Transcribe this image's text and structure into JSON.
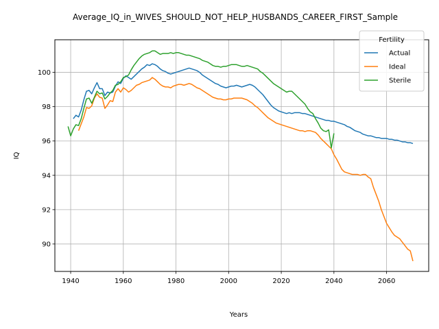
{
  "chart_data": {
    "type": "line",
    "title": "Average_IQ_in_WIVES_SHOULD_NOT_HELP_HUSBANDS_CAREER_FIRST_Sample",
    "xlabel": "Years",
    "ylabel": "IQ",
    "xlim": [
      1934,
      2076
    ],
    "ylim": [
      88.4,
      101.9
    ],
    "xticks": [
      1940,
      1960,
      1980,
      2000,
      2020,
      2040,
      2060
    ],
    "yticks": [
      90,
      92,
      94,
      96,
      98,
      100
    ],
    "grid": true,
    "legend": {
      "title": "Fertility",
      "placement": "top-right"
    },
    "series": [
      {
        "name": "Actual",
        "color": "#1f77b4",
        "x": [
          1940,
          1941,
          1942,
          1943,
          1944,
          1945,
          1946,
          1947,
          1948,
          1949,
          1950,
          1951,
          1952,
          1953,
          1954,
          1955,
          1956,
          1957,
          1958,
          1959,
          1960,
          1961,
          1962,
          1963,
          1964,
          1965,
          1966,
          1967,
          1968,
          1969,
          1970,
          1971,
          1972,
          1973,
          1974,
          1975,
          1976,
          1977,
          1978,
          1979,
          1980,
          1981,
          1982,
          1983,
          1984,
          1985,
          1986,
          1987,
          1988,
          1989,
          1990,
          1991,
          1992,
          1993,
          1994,
          1995,
          1996,
          1997,
          1998,
          1999,
          2000,
          2001,
          2002,
          2003,
          2004,
          2005,
          2006,
          2007,
          2008,
          2009,
          2010,
          2011,
          2012,
          2013,
          2014,
          2015,
          2016,
          2017,
          2018,
          2019,
          2020,
          2021,
          2022,
          2023,
          2024,
          2025,
          2026,
          2027,
          2028,
          2029,
          2030,
          2031,
          2032,
          2033,
          2034,
          2035,
          2036,
          2037,
          2038,
          2039,
          2040,
          2041,
          2042,
          2043,
          2044,
          2045,
          2046,
          2047,
          2048,
          2049,
          2050,
          2051,
          2052,
          2053,
          2054,
          2055,
          2056,
          2057,
          2058,
          2059,
          2060,
          2061,
          2062,
          2063,
          2064,
          2065,
          2066,
          2067,
          2068,
          2069,
          2070
        ],
        "y": [
          null,
          97.3,
          97.5,
          97.4,
          97.8,
          98.4,
          98.9,
          98.95,
          98.75,
          99.1,
          99.4,
          99.05,
          99.05,
          98.65,
          98.85,
          98.8,
          98.85,
          99.2,
          99.45,
          99.35,
          99.65,
          99.8,
          99.7,
          99.6,
          99.75,
          99.9,
          100.05,
          100.2,
          100.3,
          100.45,
          100.4,
          100.5,
          100.45,
          100.35,
          100.2,
          100.1,
          100.05,
          99.95,
          99.9,
          99.95,
          100.0,
          100.05,
          100.1,
          100.15,
          100.2,
          100.25,
          100.2,
          100.15,
          100.1,
          100.0,
          99.85,
          99.75,
          99.65,
          99.55,
          99.45,
          99.35,
          99.3,
          99.2,
          99.15,
          99.1,
          99.15,
          99.2,
          99.2,
          99.25,
          99.2,
          99.15,
          99.2,
          99.25,
          99.3,
          99.25,
          99.15,
          99.0,
          98.85,
          98.7,
          98.5,
          98.3,
          98.1,
          97.95,
          97.85,
          97.75,
          97.7,
          97.65,
          97.6,
          97.65,
          97.6,
          97.65,
          97.65,
          97.65,
          97.6,
          97.6,
          97.55,
          97.5,
          97.45,
          97.4,
          97.35,
          97.3,
          97.25,
          97.2,
          97.2,
          97.15,
          97.15,
          97.1,
          97.05,
          97.0,
          96.95,
          96.85,
          96.8,
          96.7,
          96.6,
          96.55,
          96.5,
          96.4,
          96.35,
          96.3,
          96.3,
          96.25,
          96.2,
          96.2,
          96.15,
          96.15,
          96.15,
          96.1,
          96.1,
          96.05,
          96.05,
          96.0,
          95.95,
          95.95,
          95.9,
          95.9,
          95.85
        ]
      },
      {
        "name": "Ideal",
        "color": "#ff7f0e",
        "x": [
          1940,
          1941,
          1942,
          1943,
          1944,
          1945,
          1946,
          1947,
          1948,
          1949,
          1950,
          1951,
          1952,
          1953,
          1954,
          1955,
          1956,
          1957,
          1958,
          1959,
          1960,
          1961,
          1962,
          1963,
          1964,
          1965,
          1966,
          1967,
          1968,
          1969,
          1970,
          1971,
          1972,
          1973,
          1974,
          1975,
          1976,
          1977,
          1978,
          1979,
          1980,
          1981,
          1982,
          1983,
          1984,
          1985,
          1986,
          1987,
          1988,
          1989,
          1990,
          1991,
          1992,
          1993,
          1994,
          1995,
          1996,
          1997,
          1998,
          1999,
          2000,
          2001,
          2002,
          2003,
          2004,
          2005,
          2006,
          2007,
          2008,
          2009,
          2010,
          2011,
          2012,
          2013,
          2014,
          2015,
          2016,
          2017,
          2018,
          2019,
          2020,
          2021,
          2022,
          2023,
          2024,
          2025,
          2026,
          2027,
          2028,
          2029,
          2030,
          2031,
          2032,
          2033,
          2034,
          2035,
          2036,
          2037,
          2038,
          2039,
          2040,
          2041,
          2042,
          2043,
          2044,
          2045,
          2046,
          2047,
          2048,
          2049,
          2050,
          2051,
          2052,
          2053,
          2054,
          2055,
          2056,
          2057,
          2058,
          2059,
          2060,
          2061,
          2062,
          2063,
          2064,
          2065,
          2066,
          2067,
          2068,
          2069,
          2070
        ],
        "y": [
          null,
          null,
          null,
          96.6,
          97.0,
          97.4,
          97.95,
          97.9,
          98.05,
          98.5,
          98.75,
          98.55,
          98.5,
          97.9,
          98.1,
          98.35,
          98.3,
          98.85,
          99.05,
          98.85,
          99.1,
          99.0,
          98.85,
          98.95,
          99.1,
          99.25,
          99.3,
          99.4,
          99.45,
          99.5,
          99.55,
          99.7,
          99.6,
          99.45,
          99.3,
          99.2,
          99.15,
          99.15,
          99.1,
          99.2,
          99.25,
          99.3,
          99.3,
          99.25,
          99.3,
          99.35,
          99.3,
          99.2,
          99.1,
          99.05,
          98.95,
          98.85,
          98.75,
          98.65,
          98.55,
          98.5,
          98.45,
          98.45,
          98.4,
          98.4,
          98.45,
          98.45,
          98.5,
          98.5,
          98.5,
          98.5,
          98.45,
          98.4,
          98.3,
          98.2,
          98.05,
          97.95,
          97.8,
          97.65,
          97.5,
          97.35,
          97.25,
          97.15,
          97.05,
          97.0,
          96.95,
          96.9,
          96.85,
          96.8,
          96.75,
          96.7,
          96.65,
          96.6,
          96.6,
          96.55,
          96.6,
          96.6,
          96.55,
          96.5,
          96.35,
          96.15,
          96.0,
          95.85,
          95.7,
          95.55,
          95.2,
          94.95,
          94.65,
          94.35,
          94.2,
          94.15,
          94.1,
          94.05,
          94.05,
          94.05,
          94.0,
          94.05,
          94.05,
          93.9,
          93.8,
          93.3,
          92.9,
          92.5,
          92.0,
          91.6,
          91.2,
          90.95,
          90.7,
          90.5,
          90.4,
          90.3,
          90.1,
          89.9,
          89.7,
          89.6,
          89.0
        ]
      },
      {
        "name": "Sterile",
        "color": "#2ca02c",
        "x": [
          1939,
          1940,
          1941,
          1942,
          1943,
          1944,
          1945,
          1946,
          1947,
          1948,
          1949,
          1950,
          1951,
          1952,
          1953,
          1954,
          1955,
          1956,
          1957,
          1958,
          1959,
          1960,
          1961,
          1962,
          1963,
          1964,
          1965,
          1966,
          1967,
          1968,
          1969,
          1970,
          1971,
          1972,
          1973,
          1974,
          1975,
          1976,
          1977,
          1978,
          1979,
          1980,
          1981,
          1982,
          1983,
          1984,
          1985,
          1986,
          1987,
          1988,
          1989,
          1990,
          1991,
          1992,
          1993,
          1994,
          1995,
          1996,
          1997,
          1998,
          1999,
          2000,
          2001,
          2002,
          2003,
          2004,
          2005,
          2006,
          2007,
          2008,
          2009,
          2010,
          2011,
          2012,
          2013,
          2014,
          2015,
          2016,
          2017,
          2018,
          2019,
          2020,
          2021,
          2022,
          2023,
          2024,
          2025,
          2026,
          2027,
          2028,
          2029,
          2030,
          2031,
          2032,
          2033,
          2034,
          2035,
          2036,
          2037,
          2038,
          2039,
          2040
        ],
        "y": [
          96.85,
          96.3,
          96.7,
          96.95,
          96.9,
          97.3,
          97.9,
          98.45,
          98.5,
          98.2,
          98.55,
          98.9,
          98.75,
          98.8,
          98.45,
          98.6,
          98.8,
          98.95,
          99.25,
          99.3,
          99.45,
          99.7,
          99.75,
          99.85,
          100.15,
          100.4,
          100.6,
          100.8,
          100.95,
          101.05,
          101.1,
          101.15,
          101.25,
          101.25,
          101.15,
          101.05,
          101.1,
          101.1,
          101.1,
          101.15,
          101.1,
          101.15,
          101.15,
          101.1,
          101.05,
          101.0,
          101.0,
          100.95,
          100.9,
          100.85,
          100.8,
          100.7,
          100.65,
          100.6,
          100.5,
          100.4,
          100.35,
          100.35,
          100.3,
          100.35,
          100.35,
          100.4,
          100.45,
          100.45,
          100.45,
          100.4,
          100.35,
          100.35,
          100.4,
          100.35,
          100.3,
          100.25,
          100.2,
          100.05,
          99.95,
          99.8,
          99.65,
          99.5,
          99.35,
          99.25,
          99.15,
          99.05,
          98.95,
          98.85,
          98.9,
          98.9,
          98.75,
          98.6,
          98.45,
          98.3,
          98.15,
          97.9,
          97.7,
          97.6,
          97.3,
          97.05,
          96.75,
          96.6,
          96.55,
          96.65,
          95.6,
          96.45
        ]
      }
    ]
  }
}
